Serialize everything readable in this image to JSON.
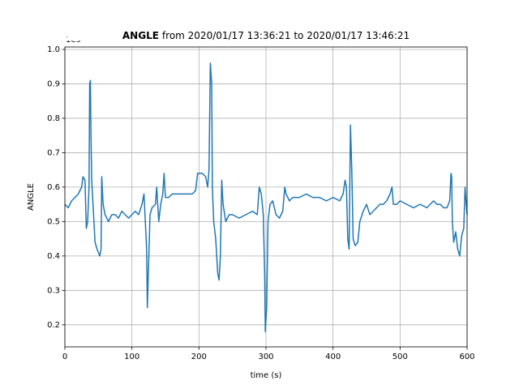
{
  "chart_data": {
    "type": "line",
    "title_name": "ANGLE",
    "title_range": "from 2020/01/17 13:36:21 to 2020/01/17 13:46:21",
    "y_offset_label": "1e9",
    "xlabel": "time (s)",
    "ylabel": "ANGLE",
    "x": [
      0,
      5,
      10,
      15,
      20,
      25,
      27,
      30,
      32,
      34,
      36,
      37,
      38,
      39,
      40,
      42,
      45,
      48,
      52,
      54,
      55,
      57,
      60,
      65,
      70,
      75,
      80,
      85,
      90,
      95,
      100,
      105,
      110,
      115,
      118,
      120,
      122,
      123,
      125,
      127,
      130,
      135,
      137,
      140,
      143,
      146,
      148,
      150,
      155,
      160,
      170,
      180,
      190,
      195,
      198,
      205,
      210,
      213,
      215,
      217,
      219,
      220,
      222,
      225,
      228,
      230,
      232,
      234,
      236,
      240,
      245,
      250,
      260,
      270,
      280,
      287,
      290,
      293,
      296,
      298,
      299,
      301,
      303,
      306,
      310,
      315,
      320,
      325,
      328,
      330,
      335,
      340,
      345,
      350,
      360,
      370,
      380,
      390,
      400,
      410,
      415,
      418,
      420,
      422,
      424,
      426,
      428,
      430,
      433,
      437,
      440,
      445,
      450,
      455,
      460,
      465,
      470,
      475,
      480,
      485,
      488,
      490,
      495,
      500,
      510,
      520,
      530,
      540,
      545,
      550,
      555,
      560,
      565,
      570,
      574,
      575,
      576,
      577,
      578,
      580,
      583,
      586,
      589,
      592,
      595,
      597,
      598,
      600
    ],
    "series": [
      {
        "name": "ANGLE",
        "color": "#1f77b4",
        "values": [
          0.55,
          0.54,
          0.56,
          0.57,
          0.58,
          0.6,
          0.63,
          0.62,
          0.48,
          0.5,
          0.6,
          0.9,
          0.91,
          0.75,
          0.62,
          0.55,
          0.44,
          0.42,
          0.4,
          0.42,
          0.63,
          0.55,
          0.52,
          0.5,
          0.52,
          0.52,
          0.51,
          0.53,
          0.52,
          0.51,
          0.52,
          0.53,
          0.52,
          0.55,
          0.58,
          0.5,
          0.42,
          0.25,
          0.38,
          0.52,
          0.54,
          0.55,
          0.6,
          0.5,
          0.55,
          0.58,
          0.64,
          0.57,
          0.57,
          0.58,
          0.58,
          0.58,
          0.58,
          0.59,
          0.64,
          0.64,
          0.63,
          0.6,
          0.65,
          0.96,
          0.9,
          0.6,
          0.5,
          0.45,
          0.35,
          0.33,
          0.4,
          0.62,
          0.55,
          0.5,
          0.52,
          0.52,
          0.51,
          0.52,
          0.53,
          0.52,
          0.6,
          0.58,
          0.52,
          0.35,
          0.18,
          0.25,
          0.5,
          0.55,
          0.56,
          0.52,
          0.51,
          0.53,
          0.6,
          0.58,
          0.56,
          0.57,
          0.57,
          0.57,
          0.58,
          0.57,
          0.57,
          0.56,
          0.57,
          0.56,
          0.58,
          0.62,
          0.6,
          0.45,
          0.42,
          0.78,
          0.65,
          0.45,
          0.43,
          0.44,
          0.5,
          0.53,
          0.55,
          0.52,
          0.53,
          0.54,
          0.55,
          0.55,
          0.56,
          0.58,
          0.6,
          0.55,
          0.55,
          0.56,
          0.55,
          0.54,
          0.55,
          0.54,
          0.55,
          0.56,
          0.55,
          0.55,
          0.54,
          0.54,
          0.56,
          0.6,
          0.64,
          0.63,
          0.5,
          0.44,
          0.47,
          0.42,
          0.4,
          0.46,
          0.48,
          0.6,
          0.57,
          0.52
        ]
      }
    ],
    "xlim": [
      0,
      600
    ],
    "xticks": [
      0,
      100,
      200,
      300,
      400,
      500,
      600
    ],
    "ylim": [
      0.136,
      1.007
    ],
    "yticks": [
      0.2,
      0.3,
      0.4,
      0.5,
      0.6,
      0.7,
      0.8,
      0.9,
      {
        "value": 1,
        "label": "1.0"
      }
    ],
    "grid": true
  }
}
